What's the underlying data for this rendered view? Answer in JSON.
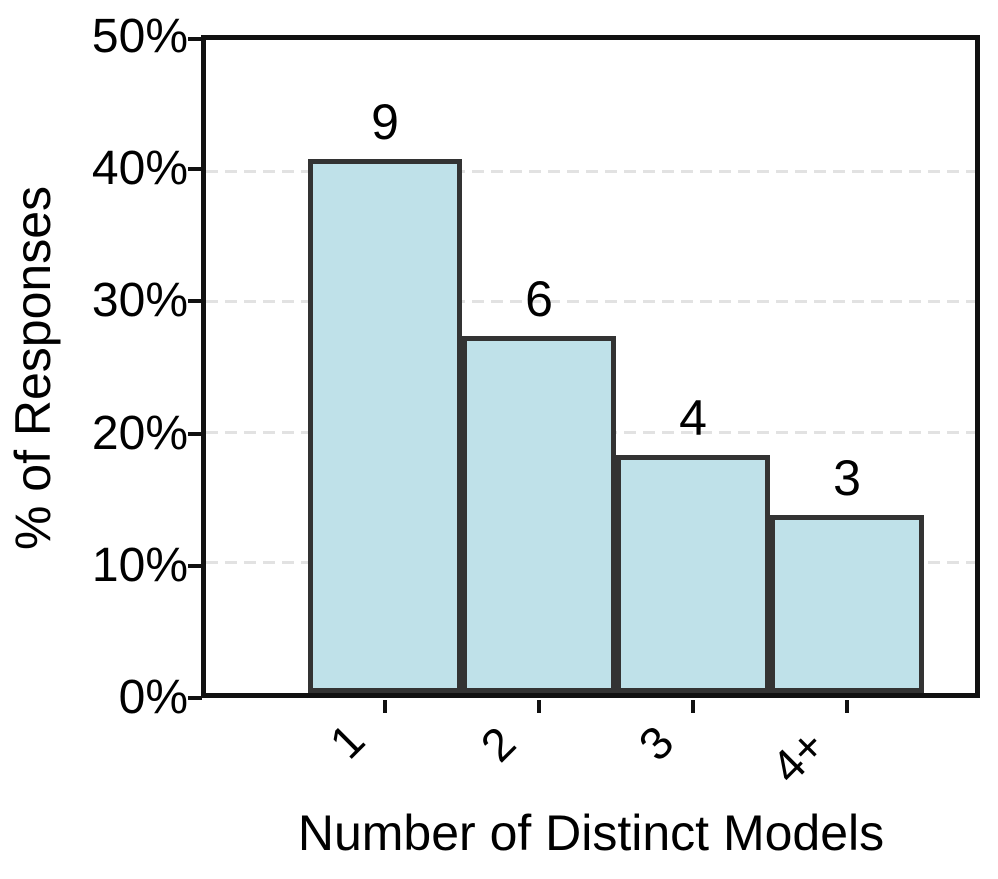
{
  "chart_data": {
    "type": "bar",
    "title": "",
    "xlabel": "Number of Distinct Models",
    "ylabel": "% of Responses",
    "categories": [
      "1",
      "2",
      "3",
      "4+"
    ],
    "counts": [
      9,
      6,
      4,
      3
    ],
    "values_percent": [
      40.9,
      27.3,
      18.2,
      13.6
    ],
    "yticks": [
      "0%",
      "10%",
      "20%",
      "30%",
      "40%",
      "50%"
    ],
    "ylim": [
      0,
      50
    ],
    "grid": "horizontal-dashed",
    "legend": "none",
    "bar_color": "#bfe1e9",
    "bar_edge_color": "#333333",
    "axis_color": "#111111",
    "gridline_color": "#e2e2e2",
    "text_color": "#000000"
  }
}
